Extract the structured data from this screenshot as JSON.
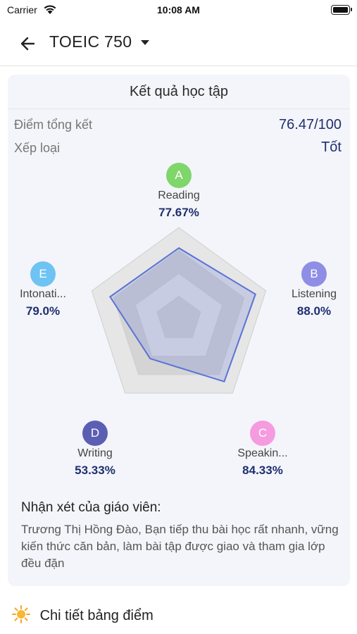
{
  "status_bar": {
    "carrier": "Carrier",
    "time": "10:08 AM"
  },
  "header": {
    "title": "TOEIC 750"
  },
  "results": {
    "title": "Kết quả học tập",
    "total_score_label": "Điểm tổng kết",
    "total_score_value": "76.47/100",
    "rank_label": "Xếp loại",
    "rank_value": "Tốt"
  },
  "skills": [
    {
      "badge": "A",
      "name": "Reading",
      "percent_label": "77.67%",
      "value": 77.67,
      "color": "#7fd66a"
    },
    {
      "badge": "B",
      "name": "Listening",
      "percent_label": "88.0%",
      "value": 88.0,
      "color": "#8e8ee6"
    },
    {
      "badge": "C",
      "name": "Speakin...",
      "percent_label": "84.33%",
      "value": 84.33,
      "color": "#f59be0"
    },
    {
      "badge": "D",
      "name": "Writing",
      "percent_label": "53.33%",
      "value": 53.33,
      "color": "#5a5fb4"
    },
    {
      "badge": "E",
      "name": "Intonati...",
      "percent_label": "79.0%",
      "value": 79.0,
      "color": "#6ec3f3"
    }
  ],
  "chart_data": {
    "type": "radar",
    "categories": [
      "Reading",
      "Listening",
      "Speakin...",
      "Writing",
      "Intonati..."
    ],
    "values": [
      77.67,
      88.0,
      84.33,
      53.33,
      79.0
    ],
    "range": [
      0,
      100
    ],
    "grid_levels": 4,
    "fill_color": "#5b73d6",
    "grid_colors": [
      "#e6e6e6",
      "#d4d4d4",
      "#e6e6e6",
      "#d4d4d4"
    ]
  },
  "teacher_comment": {
    "title": "Nhận xét của giáo viên:",
    "text": "Trương Thị Hồng Đào,   Bạn tiếp thu bài học rất nhanh, vững kiến thức căn bản, làm bài tập được giao và tham gia lớp đều đặn"
  },
  "score_detail": {
    "title": "Chi tiết bảng điểm",
    "icon": "star-icon"
  }
}
